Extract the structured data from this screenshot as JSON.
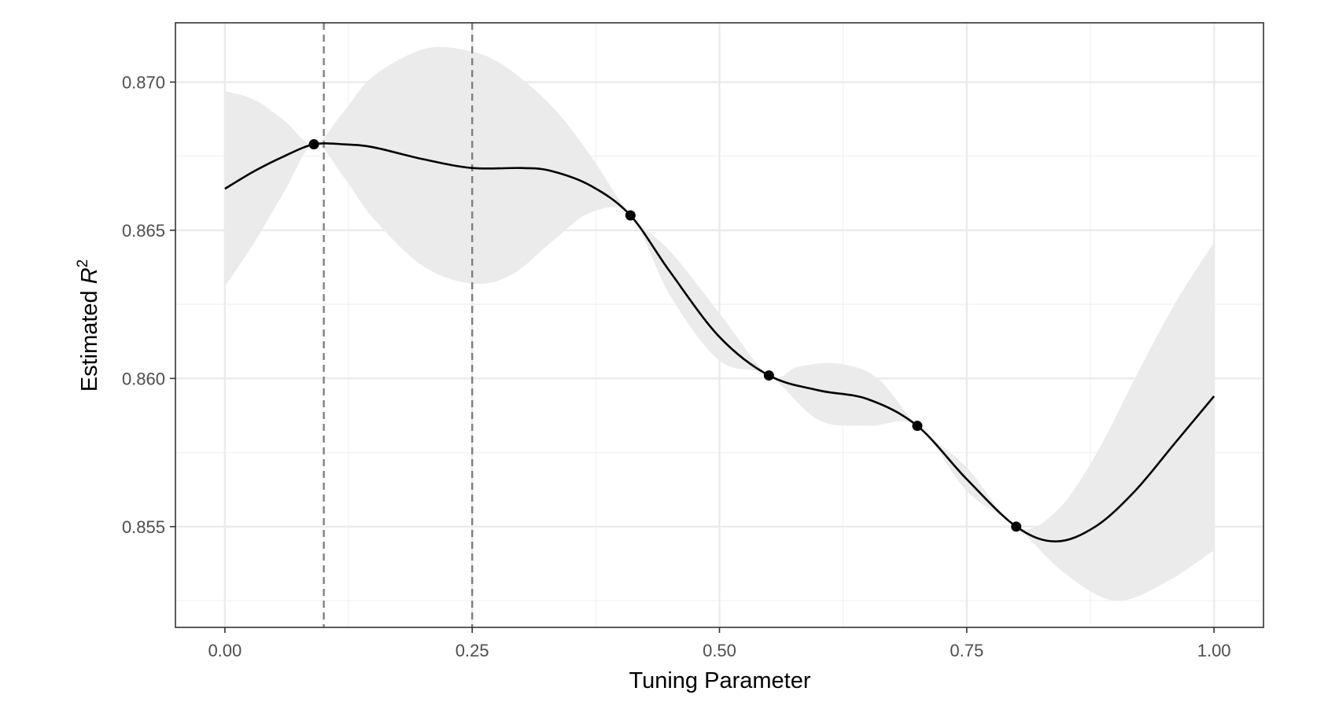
{
  "chart_data": {
    "type": "line",
    "title": "",
    "xlabel": "Tuning Parameter",
    "ylabel": {
      "prefix": "Estimated ",
      "symbol": "R",
      "superscript": "2"
    },
    "xlim": [
      -0.05,
      1.05
    ],
    "ylim": [
      0.8516,
      0.872
    ],
    "grid": true,
    "legend": "none",
    "x_ticks": [
      0,
      0.25,
      0.5,
      0.75,
      1
    ],
    "x_tick_labels": [
      "0.00",
      "0.25",
      "0.50",
      "0.75",
      "1.00"
    ],
    "y_ticks": [
      0.855,
      0.86,
      0.865,
      0.87
    ],
    "y_tick_labels": [
      "0.855",
      "0.860",
      "0.865",
      "0.870"
    ],
    "vlines": [
      0.1,
      0.25
    ],
    "points": [
      {
        "x": 0.09,
        "y": 0.8679
      },
      {
        "x": 0.41,
        "y": 0.8655
      },
      {
        "x": 0.55,
        "y": 0.8601
      },
      {
        "x": 0.7,
        "y": 0.8584
      },
      {
        "x": 0.8,
        "y": 0.855
      }
    ],
    "series": [
      {
        "values": [
          {
            "x": 0.0,
            "y": 0.8664
          },
          {
            "x": 0.03,
            "y": 0.867
          },
          {
            "x": 0.06,
            "y": 0.8675
          },
          {
            "x": 0.09,
            "y": 0.8679
          },
          {
            "x": 0.12,
            "y": 0.8679
          },
          {
            "x": 0.15,
            "y": 0.8678
          },
          {
            "x": 0.2,
            "y": 0.8674
          },
          {
            "x": 0.25,
            "y": 0.8671
          },
          {
            "x": 0.3,
            "y": 0.8671
          },
          {
            "x": 0.33,
            "y": 0.867
          },
          {
            "x": 0.37,
            "y": 0.8665
          },
          {
            "x": 0.41,
            "y": 0.8655
          },
          {
            "x": 0.45,
            "y": 0.8636
          },
          {
            "x": 0.5,
            "y": 0.8614
          },
          {
            "x": 0.55,
            "y": 0.8601
          },
          {
            "x": 0.6,
            "y": 0.8596
          },
          {
            "x": 0.65,
            "y": 0.8593
          },
          {
            "x": 0.7,
            "y": 0.8584
          },
          {
            "x": 0.75,
            "y": 0.8566
          },
          {
            "x": 0.8,
            "y": 0.855
          },
          {
            "x": 0.84,
            "y": 0.8545
          },
          {
            "x": 0.88,
            "y": 0.855
          },
          {
            "x": 0.92,
            "y": 0.8562
          },
          {
            "x": 0.96,
            "y": 0.8578
          },
          {
            "x": 1.0,
            "y": 0.8594
          }
        ]
      }
    ],
    "band": {
      "upper": [
        {
          "x": 0.0,
          "y": 0.8697
        },
        {
          "x": 0.03,
          "y": 0.8694
        },
        {
          "x": 0.06,
          "y": 0.8687
        },
        {
          "x": 0.09,
          "y": 0.8679
        },
        {
          "x": 0.12,
          "y": 0.869
        },
        {
          "x": 0.15,
          "y": 0.8702
        },
        {
          "x": 0.2,
          "y": 0.8711
        },
        {
          "x": 0.24,
          "y": 0.8711
        },
        {
          "x": 0.28,
          "y": 0.8706
        },
        {
          "x": 0.33,
          "y": 0.8692
        },
        {
          "x": 0.37,
          "y": 0.8675
        },
        {
          "x": 0.41,
          "y": 0.8655
        },
        {
          "x": 0.45,
          "y": 0.8643
        },
        {
          "x": 0.5,
          "y": 0.8622
        },
        {
          "x": 0.55,
          "y": 0.8601
        },
        {
          "x": 0.58,
          "y": 0.8604
        },
        {
          "x": 0.62,
          "y": 0.8605
        },
        {
          "x": 0.66,
          "y": 0.86
        },
        {
          "x": 0.7,
          "y": 0.8584
        },
        {
          "x": 0.75,
          "y": 0.857
        },
        {
          "x": 0.8,
          "y": 0.855
        },
        {
          "x": 0.84,
          "y": 0.8555
        },
        {
          "x": 0.88,
          "y": 0.8574
        },
        {
          "x": 0.92,
          "y": 0.86
        },
        {
          "x": 0.96,
          "y": 0.8625
        },
        {
          "x": 1.0,
          "y": 0.8646
        }
      ],
      "lower": [
        {
          "x": 0.0,
          "y": 0.8631
        },
        {
          "x": 0.03,
          "y": 0.8646
        },
        {
          "x": 0.06,
          "y": 0.8663
        },
        {
          "x": 0.09,
          "y": 0.8679
        },
        {
          "x": 0.12,
          "y": 0.8668
        },
        {
          "x": 0.15,
          "y": 0.8654
        },
        {
          "x": 0.2,
          "y": 0.8638
        },
        {
          "x": 0.25,
          "y": 0.8632
        },
        {
          "x": 0.29,
          "y": 0.8635
        },
        {
          "x": 0.33,
          "y": 0.8646
        },
        {
          "x": 0.37,
          "y": 0.8656
        },
        {
          "x": 0.41,
          "y": 0.8655
        },
        {
          "x": 0.45,
          "y": 0.8628
        },
        {
          "x": 0.5,
          "y": 0.8606
        },
        {
          "x": 0.55,
          "y": 0.8601
        },
        {
          "x": 0.6,
          "y": 0.8586
        },
        {
          "x": 0.65,
          "y": 0.8584
        },
        {
          "x": 0.7,
          "y": 0.8584
        },
        {
          "x": 0.75,
          "y": 0.8562
        },
        {
          "x": 0.8,
          "y": 0.855
        },
        {
          "x": 0.85,
          "y": 0.8534
        },
        {
          "x": 0.9,
          "y": 0.8525
        },
        {
          "x": 0.95,
          "y": 0.8531
        },
        {
          "x": 1.0,
          "y": 0.8542
        }
      ]
    },
    "colors": {
      "line": "#000000",
      "band": "#ebebeb",
      "vline": "#7f7f7f",
      "grid_major": "#ebebeb",
      "grid_minor": "#f2f2f2",
      "panel_border": "#333333"
    }
  }
}
